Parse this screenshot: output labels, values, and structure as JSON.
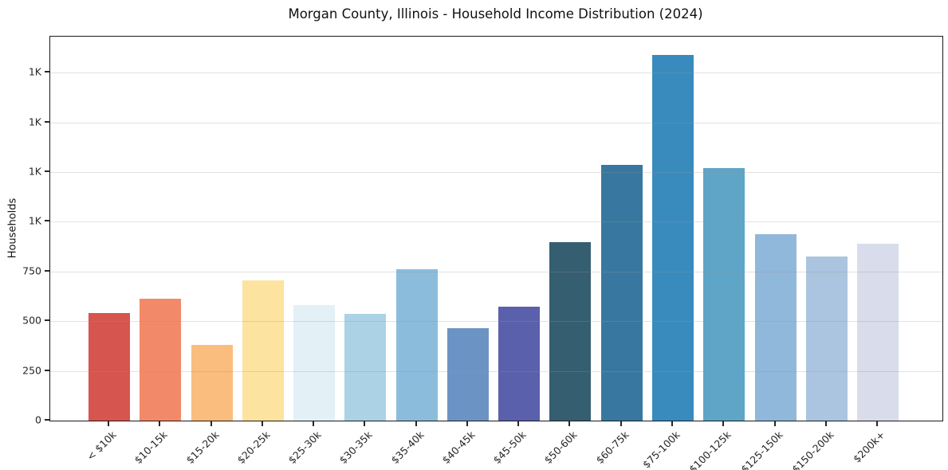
{
  "chart_data": {
    "type": "bar",
    "title": "Morgan County, Illinois - Household Income Distribution (2024)",
    "xlabel": "",
    "ylabel": "Households",
    "categories": [
      "< $10k",
      "$10-15k",
      "$15-20k",
      "$20-25k",
      "$25-30k",
      "$30-35k",
      "$35-40k",
      "$40-45k",
      "$45-50k",
      "$50-60k",
      "$60-75k",
      "$75-100k",
      "$100-125k",
      "$125-150k",
      "$150-200k",
      "$200k+"
    ],
    "values": [
      541,
      614,
      380,
      705,
      582,
      538,
      762,
      465,
      573,
      897,
      1286,
      1839,
      1270,
      938,
      824,
      889
    ],
    "bar_colors": [
      "#d6554e",
      "#f28a6a",
      "#fabd7e",
      "#fde3a0",
      "#e3f0f6",
      "#abd2e5",
      "#8bbcdc",
      "#6b94c5",
      "#5a60ab",
      "#355e71",
      "#3878a0",
      "#398bbd",
      "#5ea5c8",
      "#90b8da",
      "#abc4df",
      "#d9dceb"
    ],
    "yticks": [
      {
        "value": 0,
        "label": "0"
      },
      {
        "value": 250,
        "label": "250"
      },
      {
        "value": 500,
        "label": "500"
      },
      {
        "value": 750,
        "label": "750"
      },
      {
        "value": 1000,
        "label": "1K"
      },
      {
        "value": 1250,
        "label": "1K"
      },
      {
        "value": 1500,
        "label": "1K"
      },
      {
        "value": 1750,
        "label": "1K"
      }
    ],
    "ylim": [
      0,
      1931
    ],
    "grid": "horizontal",
    "legend": "none",
    "x_tick_label_rotation": 45,
    "background_color": "#ffffff",
    "axis_color": "#1a1a1a"
  }
}
